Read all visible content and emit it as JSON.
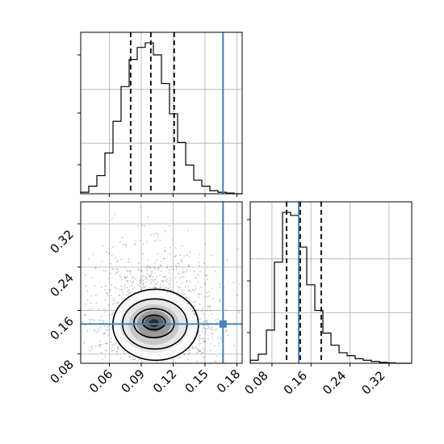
{
  "chart_data": {
    "type": "corner",
    "grid": true,
    "panels": [
      {
        "id": "hist-x",
        "type": "histogram",
        "variable": "x",
        "xlim": [
          0.033,
          0.185
        ],
        "ylim": [
          0,
          1.07
        ],
        "bin_edges": [
          0.033,
          0.0406,
          0.0482,
          0.0558,
          0.0634,
          0.071,
          0.0786,
          0.0862,
          0.0938,
          0.1014,
          0.109,
          0.1166,
          0.1242,
          0.1318,
          0.1394,
          0.147,
          0.1546,
          0.1622,
          0.1698,
          0.1774,
          0.185
        ],
        "counts": [
          0.01,
          0.05,
          0.12,
          0.27,
          0.48,
          0.71,
          0.89,
          0.97,
          1.0,
          0.92,
          0.73,
          0.53,
          0.34,
          0.19,
          0.09,
          0.05,
          0.02,
          0.01,
          0.005,
          0.0
        ],
        "quantile_lines": [
          0.08,
          0.099,
          0.121
        ],
        "truth": 0.167,
        "x_ticks": [
          0.06,
          0.09,
          0.12,
          0.15,
          0.18
        ],
        "x_tick_labels": []
      },
      {
        "id": "hist-y",
        "type": "histogram",
        "variable": "y",
        "xlim": [
          0.0355,
          0.3665
        ],
        "ylim": [
          0,
          1.07
        ],
        "bin_edges": [
          0.0355,
          0.052,
          0.0686,
          0.0851,
          0.1017,
          0.1182,
          0.1348,
          0.1513,
          0.1679,
          0.1844,
          0.201,
          0.2175,
          0.2341,
          0.2506,
          0.2672,
          0.2837,
          0.3003,
          0.3168,
          0.3334,
          0.3499,
          0.3665
        ],
        "counts": [
          0.02,
          0.06,
          0.22,
          0.67,
          1.0,
          0.98,
          0.77,
          0.52,
          0.35,
          0.2,
          0.12,
          0.07,
          0.05,
          0.03,
          0.02,
          0.012,
          0.006,
          0.003,
          0.0,
          0.0
        ],
        "quantile_lines": [
          0.11,
          0.138,
          0.181
        ],
        "truth": 0.135,
        "x_ticks": [
          0.08,
          0.16,
          0.24,
          0.32
        ],
        "x_tick_labels": [
          "0.08",
          "0.16",
          "0.24",
          "0.32"
        ]
      },
      {
        "id": "joint",
        "type": "2d-density",
        "x_variable": "x",
        "y_variable": "y",
        "xlim": [
          0.033,
          0.185
        ],
        "ylim": [
          0.0625,
          0.3605
        ],
        "center": [
          0.102,
          0.138
        ],
        "contour_levels": [
          0.5,
          1.0,
          1.5,
          2.0
        ],
        "truth": [
          0.167,
          0.135
        ],
        "x_ticks": [
          0.06,
          0.09,
          0.12,
          0.15,
          0.18
        ],
        "x_tick_labels": [
          "0.06",
          "0.09",
          "0.12",
          "0.15",
          "0.18"
        ],
        "y_ticks": [
          0.08,
          0.16,
          0.24,
          0.32
        ],
        "y_tick_labels": [
          "0.08",
          "0.16",
          "0.24",
          "0.32"
        ]
      }
    ]
  },
  "colors": {
    "truth": "#4682b4",
    "hist": "#000000",
    "grid": "#b0b0b0",
    "points": "#555555"
  }
}
